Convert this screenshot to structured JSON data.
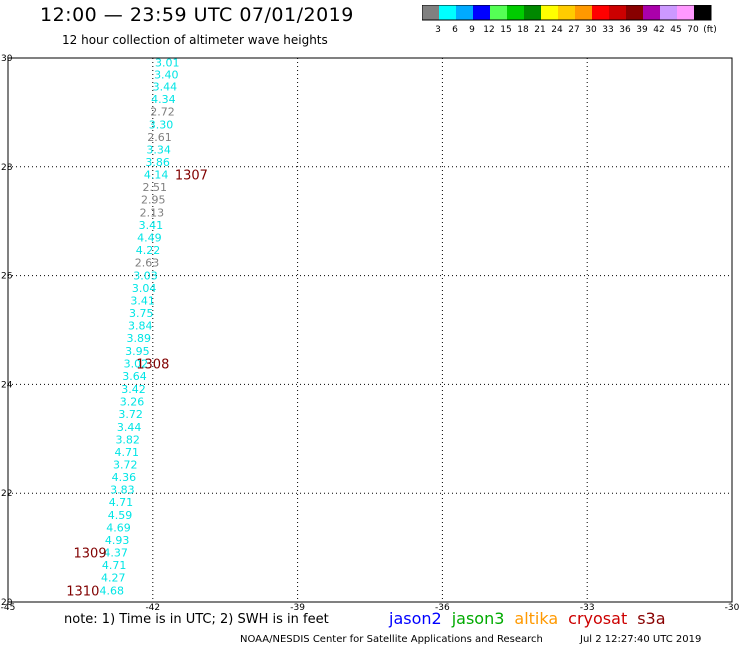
{
  "header": {
    "title": "12:00 — 23:59 UTC 07/01/2019",
    "subtitle": "12 hour collection of altimeter wave heights"
  },
  "colorbar": {
    "colors": [
      "#808080",
      "#00ffff",
      "#00aaff",
      "#0000ff",
      "#55ff55",
      "#00cc00",
      "#008800",
      "#ffff00",
      "#ffcc00",
      "#ff9900",
      "#ff0000",
      "#cc0000",
      "#880000",
      "#aa00aa",
      "#cc99ff",
      "#ff99ff",
      "#000000"
    ],
    "labels": [
      "3",
      "6",
      "9",
      "12",
      "15",
      "18",
      "21",
      "24",
      "27",
      "30",
      "33",
      "36",
      "39",
      "42",
      "45",
      "70",
      "(ft)"
    ]
  },
  "chart_data": {
    "type": "scatter",
    "title": "",
    "xlabel": "",
    "ylabel": "",
    "xlim": [
      -45,
      -30
    ],
    "ylim": [
      20,
      30
    ],
    "x_ticks": [
      "-45",
      "-42",
      "-39",
      "-36",
      "-33",
      "-30"
    ],
    "y_ticks": [
      "20",
      "22",
      "24",
      "26",
      "28",
      "30"
    ],
    "grid": true,
    "points": [
      {
        "x": -41.7,
        "y": 29.92,
        "label": "3.01",
        "color": "#00e5e5"
      },
      {
        "x": -41.72,
        "y": 29.7,
        "label": "3.40",
        "color": "#00e5e5"
      },
      {
        "x": -41.75,
        "y": 29.48,
        "label": "3.44",
        "color": "#00e5e5"
      },
      {
        "x": -41.78,
        "y": 29.25,
        "label": "4.34",
        "color": "#00e5e5"
      },
      {
        "x": -41.8,
        "y": 29.02,
        "label": "2.72",
        "color": "#808080"
      },
      {
        "x": -41.83,
        "y": 28.78,
        "label": "3.30",
        "color": "#00e5e5"
      },
      {
        "x": -41.86,
        "y": 28.55,
        "label": "2.61",
        "color": "#808080"
      },
      {
        "x": -41.88,
        "y": 28.32,
        "label": "3.34",
        "color": "#00e5e5"
      },
      {
        "x": -41.9,
        "y": 28.09,
        "label": "3.86",
        "color": "#00e5e5"
      },
      {
        "x": -41.93,
        "y": 27.86,
        "label": "4.14",
        "color": "#00e5e5"
      },
      {
        "x": -41.96,
        "y": 27.63,
        "label": "2.51",
        "color": "#808080"
      },
      {
        "x": -41.99,
        "y": 27.4,
        "label": "2.95",
        "color": "#808080"
      },
      {
        "x": -42.02,
        "y": 27.16,
        "label": "2.13",
        "color": "#808080"
      },
      {
        "x": -42.04,
        "y": 26.93,
        "label": "3.41",
        "color": "#00e5e5"
      },
      {
        "x": -42.07,
        "y": 26.7,
        "label": "4.49",
        "color": "#00e5e5"
      },
      {
        "x": -42.1,
        "y": 26.47,
        "label": "4.22",
        "color": "#00e5e5"
      },
      {
        "x": -42.12,
        "y": 26.24,
        "label": "2.63",
        "color": "#808080"
      },
      {
        "x": -42.15,
        "y": 26.0,
        "label": "3.03",
        "color": "#00e5e5"
      },
      {
        "x": -42.18,
        "y": 25.77,
        "label": "3.04",
        "color": "#00e5e5"
      },
      {
        "x": -42.21,
        "y": 25.54,
        "label": "3.41",
        "color": "#00e5e5"
      },
      {
        "x": -42.24,
        "y": 25.31,
        "label": "3.75",
        "color": "#00e5e5"
      },
      {
        "x": -42.26,
        "y": 25.08,
        "label": "3.84",
        "color": "#00e5e5"
      },
      {
        "x": -42.29,
        "y": 24.85,
        "label": "3.89",
        "color": "#00e5e5"
      },
      {
        "x": -42.32,
        "y": 24.61,
        "label": "3.95",
        "color": "#00e5e5"
      },
      {
        "x": -42.35,
        "y": 24.38,
        "label": "3.02",
        "color": "#00e5e5"
      },
      {
        "x": -42.38,
        "y": 24.15,
        "label": "3.64",
        "color": "#00e5e5"
      },
      {
        "x": -42.4,
        "y": 23.92,
        "label": "3.42",
        "color": "#00e5e5"
      },
      {
        "x": -42.43,
        "y": 23.69,
        "label": "3.26",
        "color": "#00e5e5"
      },
      {
        "x": -42.46,
        "y": 23.46,
        "label": "3.72",
        "color": "#00e5e5"
      },
      {
        "x": -42.49,
        "y": 23.22,
        "label": "3.44",
        "color": "#00e5e5"
      },
      {
        "x": -42.52,
        "y": 22.99,
        "label": "3.82",
        "color": "#00e5e5"
      },
      {
        "x": -42.54,
        "y": 22.76,
        "label": "4.71",
        "color": "#00e5e5"
      },
      {
        "x": -42.57,
        "y": 22.53,
        "label": "3.72",
        "color": "#00e5e5"
      },
      {
        "x": -42.6,
        "y": 22.3,
        "label": "4.36",
        "color": "#00e5e5"
      },
      {
        "x": -42.63,
        "y": 22.07,
        "label": "3.83",
        "color": "#00e5e5"
      },
      {
        "x": -42.66,
        "y": 21.84,
        "label": "4.71",
        "color": "#00e5e5"
      },
      {
        "x": -42.68,
        "y": 21.6,
        "label": "4.59",
        "color": "#00e5e5"
      },
      {
        "x": -42.71,
        "y": 21.37,
        "label": "4.69",
        "color": "#00e5e5"
      },
      {
        "x": -42.74,
        "y": 21.14,
        "label": "4.93",
        "color": "#00e5e5"
      },
      {
        "x": -42.77,
        "y": 20.91,
        "label": "4.37",
        "color": "#00e5e5"
      },
      {
        "x": -42.8,
        "y": 20.68,
        "label": "4.71",
        "color": "#00e5e5"
      },
      {
        "x": -42.82,
        "y": 20.45,
        "label": "4.27",
        "color": "#00e5e5"
      },
      {
        "x": -42.85,
        "y": 20.21,
        "label": "4.68",
        "color": "#00e5e5"
      }
    ],
    "time_labels": [
      {
        "x": -41.2,
        "y": 27.86,
        "label": "1307"
      },
      {
        "x": -42.0,
        "y": 24.38,
        "label": "1308"
      },
      {
        "x": -43.3,
        "y": 20.91,
        "label": "1309"
      },
      {
        "x": -43.45,
        "y": 20.21,
        "label": "1310"
      }
    ],
    "label_color": "#800000"
  },
  "footer": {
    "note": "note:  1) Time is in UTC;  2) SWH is in feet",
    "satellites": [
      {
        "name": "jason2",
        "color": "#0000ff"
      },
      {
        "name": "jason3",
        "color": "#00aa00"
      },
      {
        "name": "altika",
        "color": "#ff9900"
      },
      {
        "name": "cryosat",
        "color": "#cc0000"
      },
      {
        "name": "s3a",
        "color": "#880000"
      }
    ],
    "credit": "NOAA/NESDIS Center for Satellite Applications and Research",
    "timestamp": "Jul  2 12:27:40 UTC 2019"
  }
}
